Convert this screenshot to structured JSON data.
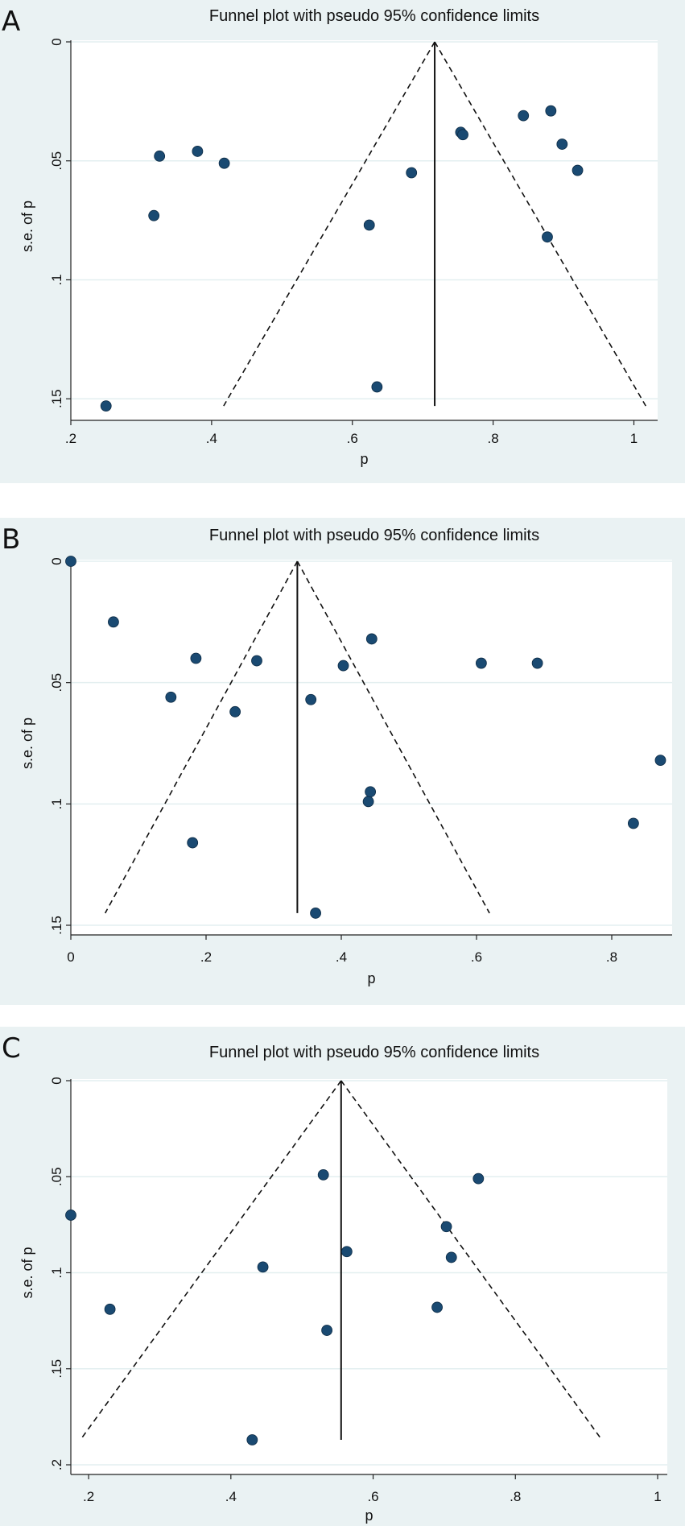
{
  "chart_data": [
    {
      "type": "scatter",
      "panel_letter": "A",
      "title": "Funnel plot with pseudo 95% confidence limits",
      "xlabel": "p",
      "ylabel": "s.e. of p",
      "xlim": [
        0.2,
        1.02
      ],
      "ylim": [
        0,
        0.155
      ],
      "x_ticks": [
        0.2,
        0.4,
        0.6,
        0.8,
        1
      ],
      "x_tick_labels": [
        ".2",
        ".4",
        ".6",
        ".8",
        "1"
      ],
      "y_ticks": [
        0,
        0.05,
        0.1,
        0.15
      ],
      "y_tick_labels": [
        "0",
        ".05",
        ".1",
        ".15"
      ],
      "pooled_estimate": 0.717,
      "funnel_max_se": 0.153,
      "points": [
        {
          "x": 0.25,
          "y": 0.153
        },
        {
          "x": 0.318,
          "y": 0.073
        },
        {
          "x": 0.326,
          "y": 0.048
        },
        {
          "x": 0.38,
          "y": 0.046
        },
        {
          "x": 0.418,
          "y": 0.051
        },
        {
          "x": 0.624,
          "y": 0.077
        },
        {
          "x": 0.635,
          "y": 0.145
        },
        {
          "x": 0.684,
          "y": 0.055
        },
        {
          "x": 0.754,
          "y": 0.038
        },
        {
          "x": 0.757,
          "y": 0.039
        },
        {
          "x": 0.843,
          "y": 0.031
        },
        {
          "x": 0.877,
          "y": 0.082
        },
        {
          "x": 0.882,
          "y": 0.029
        },
        {
          "x": 0.898,
          "y": 0.043
        },
        {
          "x": 0.92,
          "y": 0.054
        }
      ]
    },
    {
      "type": "scatter",
      "panel_letter": "B",
      "title": "Funnel plot with pseudo 95% confidence limits",
      "xlabel": "p",
      "ylabel": "s.e. of p",
      "xlim": [
        0,
        0.875
      ],
      "ylim": [
        0,
        0.15
      ],
      "x_ticks": [
        0,
        0.2,
        0.4,
        0.6,
        0.8
      ],
      "x_tick_labels": [
        "0",
        ".2",
        ".4",
        ".6",
        ".8"
      ],
      "y_ticks": [
        0,
        0.05,
        0.1,
        0.15
      ],
      "y_tick_labels": [
        "0",
        ".05",
        ".1",
        ".15"
      ],
      "pooled_estimate": 0.335,
      "funnel_max_se": 0.145,
      "points": [
        {
          "x": 0.0,
          "y": 0.0
        },
        {
          "x": 0.063,
          "y": 0.025
        },
        {
          "x": 0.148,
          "y": 0.056
        },
        {
          "x": 0.18,
          "y": 0.116
        },
        {
          "x": 0.185,
          "y": 0.04
        },
        {
          "x": 0.243,
          "y": 0.062
        },
        {
          "x": 0.275,
          "y": 0.041
        },
        {
          "x": 0.355,
          "y": 0.057
        },
        {
          "x": 0.362,
          "y": 0.145
        },
        {
          "x": 0.403,
          "y": 0.043
        },
        {
          "x": 0.44,
          "y": 0.099
        },
        {
          "x": 0.443,
          "y": 0.095
        },
        {
          "x": 0.445,
          "y": 0.032
        },
        {
          "x": 0.607,
          "y": 0.042
        },
        {
          "x": 0.69,
          "y": 0.042
        },
        {
          "x": 0.832,
          "y": 0.108
        },
        {
          "x": 0.872,
          "y": 0.082
        }
      ]
    },
    {
      "type": "scatter",
      "panel_letter": "C",
      "title": "Funnel plot with pseudo 95% confidence limits",
      "xlabel": "p",
      "ylabel": "s.e. of p",
      "xlim": [
        0.175,
        1.0
      ],
      "ylim": [
        0,
        0.2
      ],
      "x_ticks": [
        0.2,
        0.4,
        0.6,
        0.8,
        1
      ],
      "x_tick_labels": [
        ".2",
        ".4",
        ".6",
        ".8",
        "1"
      ],
      "y_ticks": [
        0,
        0.05,
        0.1,
        0.15,
        0.2
      ],
      "y_tick_labels": [
        "0",
        ".05",
        ".1",
        ".15",
        ".2"
      ],
      "pooled_estimate": 0.555,
      "funnel_max_se": 0.187,
      "points": [
        {
          "x": 0.175,
          "y": 0.07
        },
        {
          "x": 0.23,
          "y": 0.119
        },
        {
          "x": 0.43,
          "y": 0.187
        },
        {
          "x": 0.445,
          "y": 0.097
        },
        {
          "x": 0.53,
          "y": 0.049
        },
        {
          "x": 0.535,
          "y": 0.13
        },
        {
          "x": 0.563,
          "y": 0.089
        },
        {
          "x": 0.69,
          "y": 0.118
        },
        {
          "x": 0.703,
          "y": 0.076
        },
        {
          "x": 0.71,
          "y": 0.092
        },
        {
          "x": 0.748,
          "y": 0.051
        }
      ]
    }
  ]
}
